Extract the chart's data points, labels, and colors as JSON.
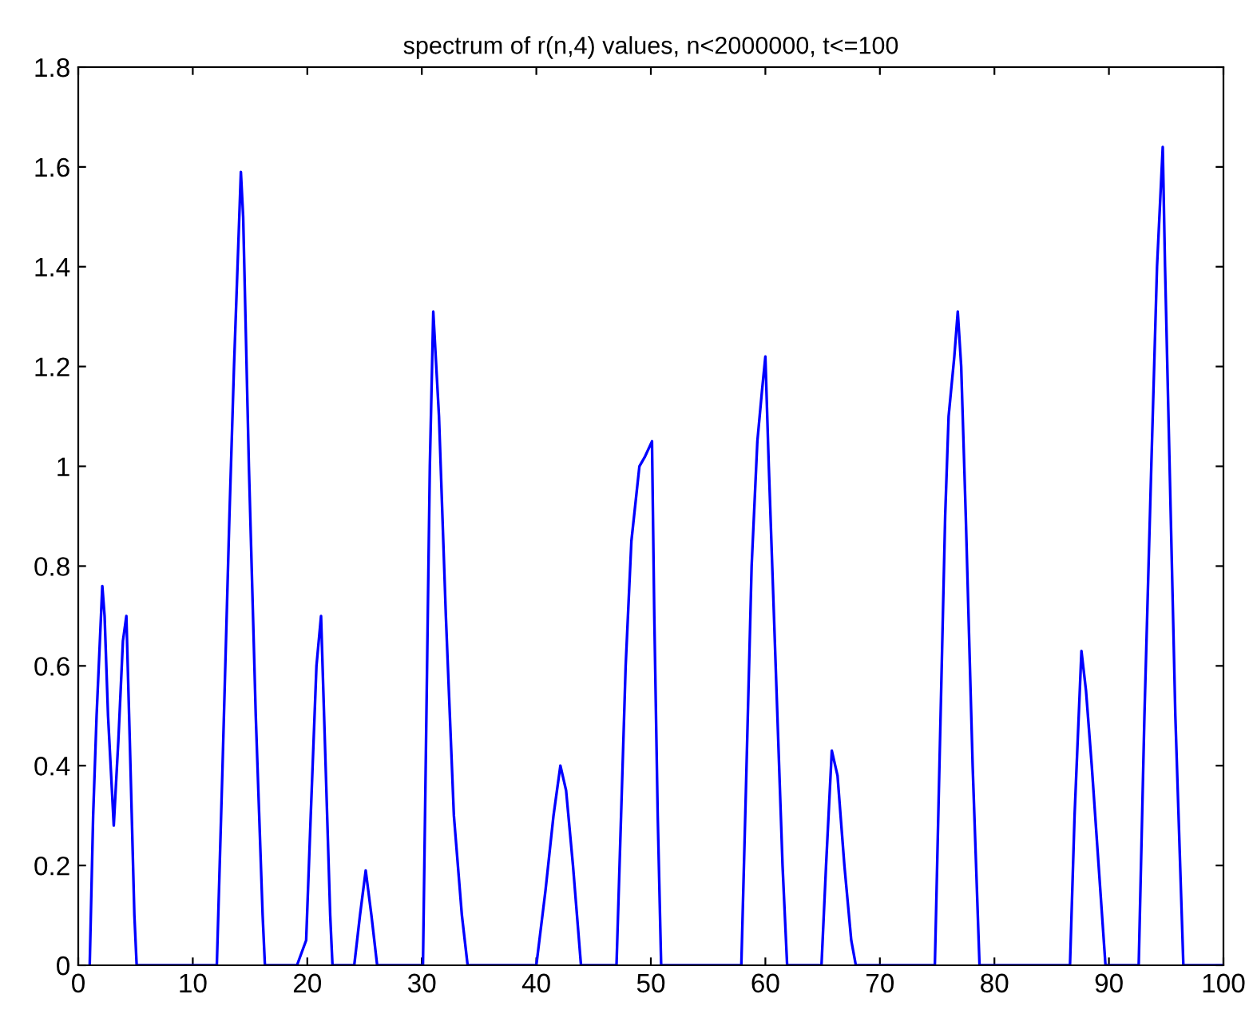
{
  "chart_data": {
    "type": "line",
    "title": "spectrum of r(n,4) values, n<2000000, t<=100",
    "series": [
      {
        "color": "#0000ff",
        "x": [
          1,
          1.3,
          1.6,
          2.1,
          2.3,
          2.6,
          3.1,
          3.5,
          3.9,
          4.2,
          4.5,
          4.9,
          5.1,
          12.1,
          12.6,
          13.2,
          13.6,
          14.2,
          14.4,
          14.9,
          15.5,
          16.1,
          16.3,
          19.1,
          19.9,
          20.3,
          20.8,
          21.2,
          21.6,
          22.0,
          22.2,
          24.1,
          24.6,
          25.1,
          25.6,
          26.1,
          30.1,
          30.4,
          30.7,
          31.0,
          31.5,
          32.1,
          32.8,
          33.5,
          34,
          40,
          40.8,
          41.5,
          42.1,
          42.6,
          43.2,
          43.9,
          47,
          47.4,
          47.8,
          48.3,
          49,
          49.5,
          50.1,
          50.3,
          50.6,
          50.9,
          57.9,
          58.3,
          58.8,
          59.3,
          59.7,
          60,
          60.3,
          60.9,
          61.5,
          61.9,
          64.9,
          65.3,
          65.8,
          66.3,
          66.9,
          67.5,
          67.9,
          74.8,
          75.2,
          75.7,
          76.0,
          76.5,
          76.8,
          77.1,
          77.5,
          78.1,
          78.7,
          86.6,
          87.0,
          87.6,
          88.0,
          88.5,
          89.1,
          89.7,
          92.6,
          93.1,
          93.7,
          94.2,
          94.7,
          94.9,
          95.3,
          95.8,
          96.5,
          100
        ],
        "values": [
          0,
          0.3,
          0.5,
          0.76,
          0.7,
          0.5,
          0.28,
          0.45,
          0.65,
          0.7,
          0.45,
          0.1,
          0,
          0,
          0.4,
          0.9,
          1.2,
          1.59,
          1.5,
          1.0,
          0.5,
          0.1,
          0,
          0,
          0.05,
          0.3,
          0.6,
          0.7,
          0.4,
          0.1,
          0,
          0,
          0.1,
          0.19,
          0.1,
          0,
          0,
          0.5,
          1.0,
          1.31,
          1.1,
          0.7,
          0.3,
          0.1,
          0,
          0,
          0.15,
          0.3,
          0.4,
          0.35,
          0.2,
          0,
          0,
          0.3,
          0.6,
          0.85,
          1.0,
          1.02,
          1.05,
          0.7,
          0.3,
          0,
          0,
          0.35,
          0.8,
          1.05,
          1.15,
          1.22,
          1.0,
          0.6,
          0.2,
          0,
          0,
          0.2,
          0.43,
          0.38,
          0.2,
          0.05,
          0,
          0,
          0.4,
          0.9,
          1.1,
          1.22,
          1.31,
          1.2,
          0.9,
          0.4,
          0,
          0,
          0.3,
          0.63,
          0.55,
          0.4,
          0.2,
          0,
          0,
          0.5,
          1.0,
          1.4,
          1.64,
          1.4,
          1.0,
          0.5,
          0,
          0
        ]
      }
    ],
    "xlim": [
      0,
      100
    ],
    "xticks": [
      0,
      10,
      20,
      30,
      40,
      50,
      60,
      70,
      80,
      90,
      100
    ],
    "ylim": [
      0,
      1.8
    ],
    "yticks": [
      0,
      0.2,
      0.4,
      0.6,
      0.8,
      1,
      1.2,
      1.4,
      1.6,
      1.8
    ],
    "grid": false,
    "legend": false,
    "marker": "none",
    "line_style": "solid"
  }
}
